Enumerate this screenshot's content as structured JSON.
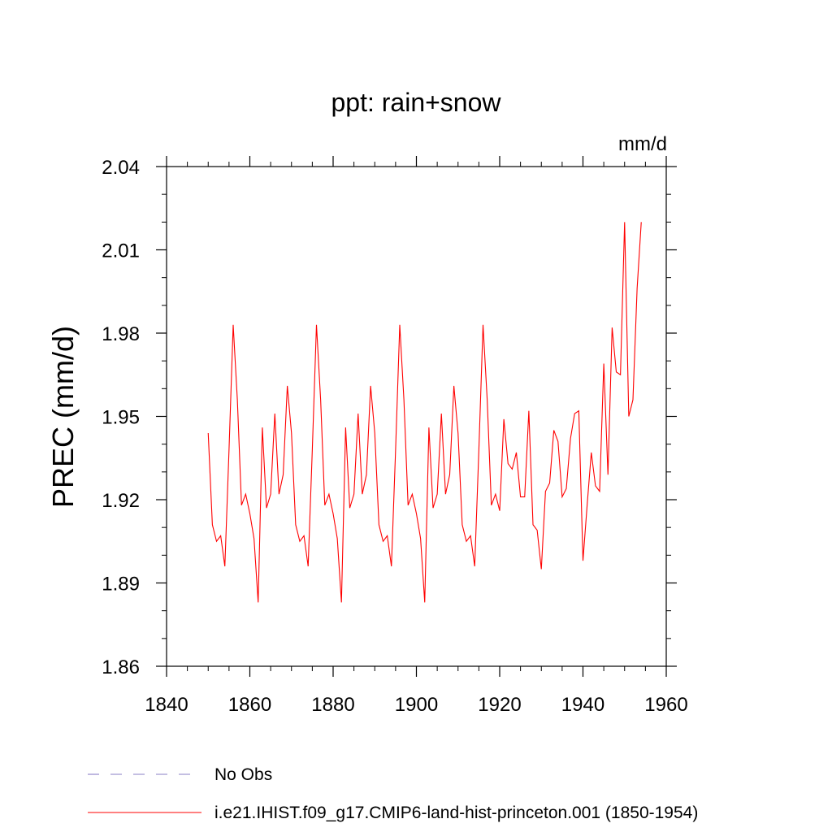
{
  "chart_data": {
    "type": "line",
    "title": "ppt: rain+snow",
    "units": "mm/d",
    "ylabel": "PREC  (mm/d)",
    "xlabel": "",
    "xlim": [
      1840,
      1960
    ],
    "ylim": [
      1.86,
      2.04
    ],
    "x_ticks": [
      1840,
      1860,
      1880,
      1900,
      1920,
      1940,
      1960
    ],
    "x_tick_labels": [
      "1840",
      "1860",
      "1880",
      "1900",
      "1920",
      "1940",
      "1960"
    ],
    "y_ticks": [
      1.86,
      1.89,
      1.92,
      1.95,
      1.98,
      2.01,
      2.04
    ],
    "y_tick_labels": [
      "1.86",
      "1.89",
      "1.92",
      "1.95",
      "1.98",
      "2.01",
      "2.04"
    ],
    "grid": false,
    "legend_position": "bottom",
    "series": [
      {
        "name": "No Obs",
        "color": "#8a7fc6",
        "style": "dashed",
        "x": [],
        "y": []
      },
      {
        "name": "i.e21.IHIST.f09_g17.CMIP6-land-hist-princeton.001 (1850-1954)",
        "color": "#ff0000",
        "style": "solid",
        "x": [
          1850,
          1851,
          1852,
          1853,
          1854,
          1855,
          1856,
          1857,
          1858,
          1859,
          1860,
          1861,
          1862,
          1863,
          1864,
          1865,
          1866,
          1867,
          1868,
          1869,
          1870,
          1871,
          1872,
          1873,
          1874,
          1875,
          1876,
          1877,
          1878,
          1879,
          1880,
          1881,
          1882,
          1883,
          1884,
          1885,
          1886,
          1887,
          1888,
          1889,
          1890,
          1891,
          1892,
          1893,
          1894,
          1895,
          1896,
          1897,
          1898,
          1899,
          1900,
          1901,
          1902,
          1903,
          1904,
          1905,
          1906,
          1907,
          1908,
          1909,
          1910,
          1911,
          1912,
          1913,
          1914,
          1915,
          1916,
          1917,
          1918,
          1919,
          1920,
          1921,
          1922,
          1923,
          1924,
          1925,
          1926,
          1927,
          1928,
          1929,
          1930,
          1931,
          1932,
          1933,
          1934,
          1935,
          1936,
          1937,
          1938,
          1939,
          1940,
          1941,
          1942,
          1943,
          1944,
          1945,
          1946,
          1947,
          1948,
          1949,
          1950,
          1951,
          1952,
          1953,
          1954
        ],
        "y": [
          1.944,
          1.911,
          1.905,
          1.907,
          1.896,
          1.938,
          1.983,
          1.956,
          1.918,
          1.922,
          1.915,
          1.906,
          1.883,
          1.946,
          1.917,
          1.922,
          1.951,
          1.922,
          1.929,
          1.961,
          1.944,
          1.911,
          1.905,
          1.907,
          1.896,
          1.938,
          1.983,
          1.956,
          1.918,
          1.922,
          1.915,
          1.906,
          1.883,
          1.946,
          1.917,
          1.922,
          1.951,
          1.922,
          1.929,
          1.961,
          1.944,
          1.911,
          1.905,
          1.907,
          1.896,
          1.938,
          1.983,
          1.956,
          1.918,
          1.922,
          1.915,
          1.906,
          1.883,
          1.946,
          1.917,
          1.922,
          1.951,
          1.922,
          1.929,
          1.961,
          1.944,
          1.911,
          1.905,
          1.907,
          1.896,
          1.938,
          1.983,
          1.956,
          1.918,
          1.922,
          1.916,
          1.949,
          1.933,
          1.931,
          1.937,
          1.921,
          1.921,
          1.952,
          1.911,
          1.909,
          1.895,
          1.923,
          1.926,
          1.945,
          1.941,
          1.921,
          1.924,
          1.942,
          1.951,
          1.952,
          1.898,
          1.918,
          1.937,
          1.925,
          1.923,
          1.969,
          1.929,
          1.982,
          1.966,
          1.965,
          2.02,
          1.95,
          1.956,
          1.996,
          2.02
        ]
      }
    ]
  }
}
